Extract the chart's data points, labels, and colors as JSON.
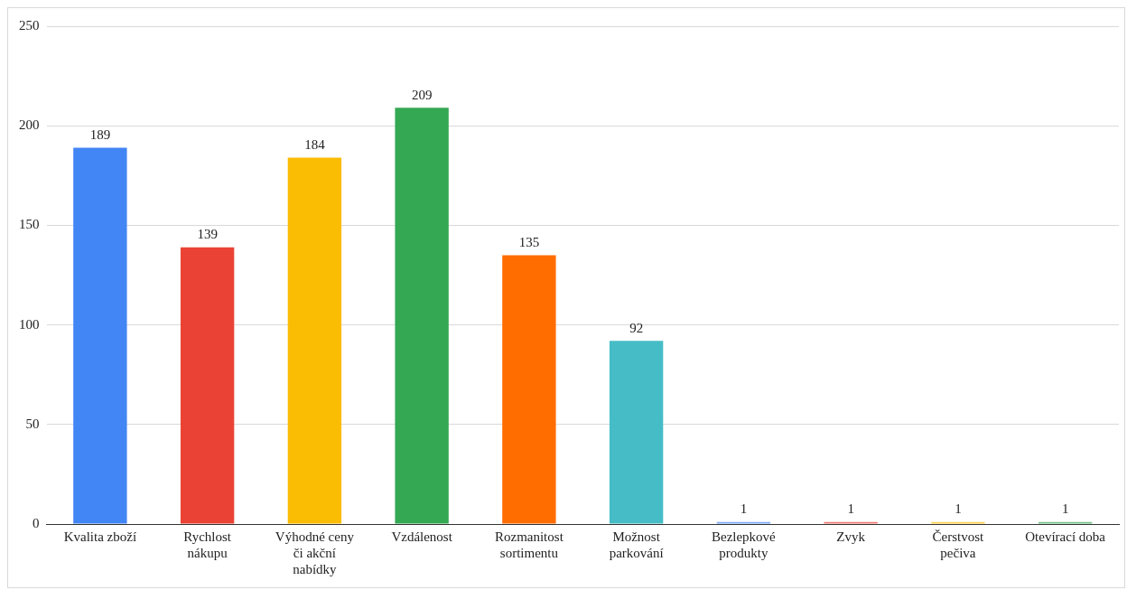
{
  "chart_data": {
    "type": "bar",
    "categories": [
      "Kvalita zboží",
      "Rychlost nákupu",
      "Výhodné ceny či akční nabídky",
      "Vzdálenost",
      "Rozmanitost sortimentu",
      "Možnost parkování",
      "Bezlepkové produkty",
      "Zvyk",
      "Čerstvost pečiva",
      "Otevírací doba"
    ],
    "values": [
      189,
      139,
      184,
      209,
      135,
      92,
      1,
      1,
      1,
      1
    ],
    "colors": [
      "#4285f4",
      "#ea4335",
      "#fbbc04",
      "#34a853",
      "#ff6d01",
      "#46bdc6",
      "#7baaf7",
      "#f07b72",
      "#fcd04f",
      "#71c287"
    ],
    "ylim": [
      0,
      250
    ],
    "yticks": [
      0,
      50,
      100,
      150,
      200,
      250
    ],
    "grid": "y",
    "legend": false,
    "data_labels": true
  }
}
